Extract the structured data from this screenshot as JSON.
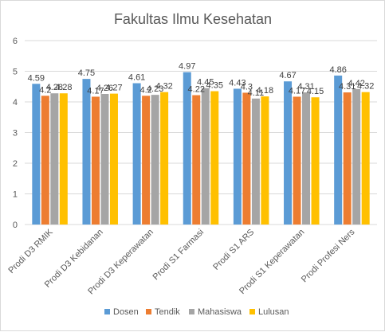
{
  "chart_data": {
    "type": "bar",
    "title": "Fakultas Ilmu Kesehatan",
    "categories": [
      "Prodi D3 RMIK",
      "Prodi D3 Kebidanan",
      "Prodi D3 Keperawatan",
      "Prodi S1 Farmasi",
      "Prodi S1 ARS",
      "Prodi S1 Keperawatan",
      "Prodi Profesi Ners"
    ],
    "series": [
      {
        "name": "Dosen",
        "color": "#5b9bd5",
        "values": [
          4.59,
          4.75,
          4.61,
          4.97,
          4.43,
          4.67,
          4.86
        ]
      },
      {
        "name": "Tendik",
        "color": "#ed7d31",
        "values": [
          4.2,
          4.17,
          4.2,
          4.22,
          4.3,
          4.17,
          4.31
        ]
      },
      {
        "name": "Mahasiswa",
        "color": "#a5a5a5",
        "values": [
          4.28,
          4.26,
          4.23,
          4.45,
          4.11,
          4.31,
          4.42
        ]
      },
      {
        "name": "Lulusan",
        "color": "#ffc000",
        "values": [
          4.28,
          4.27,
          4.32,
          4.35,
          4.18,
          4.15,
          4.32
        ]
      }
    ],
    "ylim": [
      0,
      6
    ],
    "yticks": [
      0,
      1,
      2,
      3,
      4,
      5,
      6
    ],
    "grid": true,
    "legend": "bottom"
  }
}
